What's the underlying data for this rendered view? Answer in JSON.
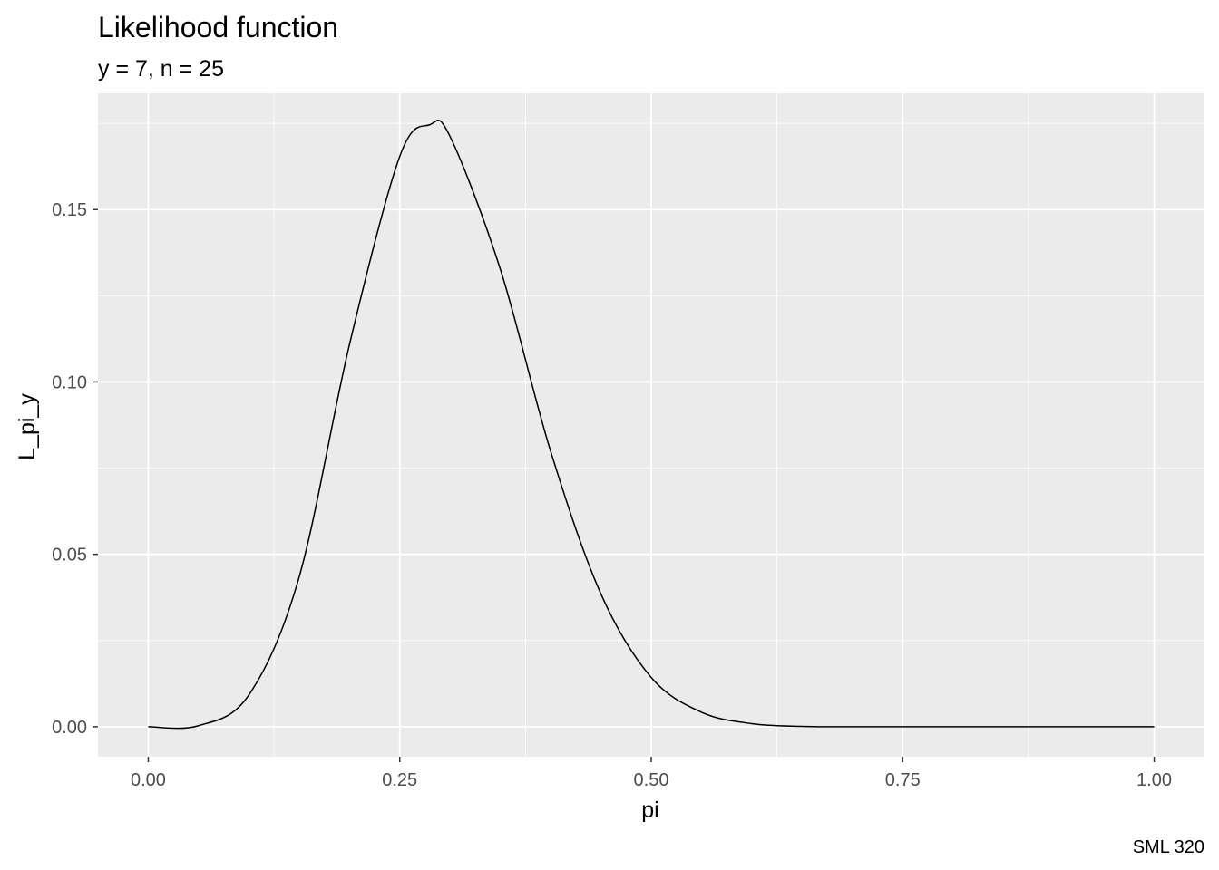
{
  "chart_data": {
    "type": "line",
    "title": "Likelihood function",
    "subtitle": "y = 7, n = 25",
    "caption": "SML 320",
    "xlabel": "pi",
    "ylabel": "L_pi_y",
    "xlim": [
      -0.05,
      1.05
    ],
    "ylim": [
      -0.0087,
      0.1837
    ],
    "x_ticks": [
      0.0,
      0.25,
      0.5,
      0.75,
      1.0
    ],
    "x_tick_labels": [
      "0.00",
      "0.25",
      "0.50",
      "0.75",
      "1.00"
    ],
    "y_ticks": [
      0.0,
      0.05,
      0.1,
      0.15
    ],
    "y_tick_labels": [
      "0.00",
      "0.05",
      "0.10",
      "0.15"
    ],
    "grid": true,
    "legend": "none",
    "series": [
      {
        "x": [
          0.0,
          0.05,
          0.1,
          0.15,
          0.2,
          0.25,
          0.28,
          0.3,
          0.35,
          0.4,
          0.45,
          0.5,
          0.55,
          0.6,
          0.65,
          0.7,
          0.75,
          0.8,
          0.85,
          0.9,
          0.95,
          1.0
        ],
        "y": [
          0.0,
          0.0003,
          0.0092,
          0.0434,
          0.1108,
          0.1654,
          0.1746,
          0.1712,
          0.1327,
          0.0799,
          0.0385,
          0.0143,
          0.0042,
          0.0009,
          0.0001,
          0.0,
          0.0,
          0.0,
          0.0,
          0.0,
          0.0,
          0.0
        ]
      }
    ],
    "colors": {
      "panel_background": "#ebebeb",
      "grid_major": "#ffffff",
      "line": "#000000",
      "tick_label": "#4d4d4d"
    }
  }
}
